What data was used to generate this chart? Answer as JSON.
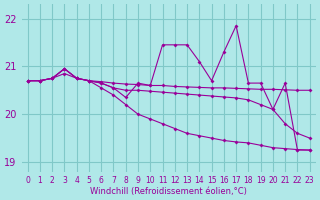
{
  "title": "",
  "xlabel": "Windchill (Refroidissement éolien,°C)",
  "ylabel": "",
  "background_color": "#b0e8e8",
  "line_color": "#990099",
  "grid_color": "#80c8c8",
  "x_ticks": [
    0,
    1,
    2,
    3,
    4,
    5,
    6,
    7,
    8,
    9,
    10,
    11,
    12,
    13,
    14,
    15,
    16,
    17,
    18,
    19,
    20,
    21,
    22,
    23
  ],
  "y_ticks": [
    19,
    20,
    21,
    22
  ],
  "ylim": [
    18.8,
    22.3
  ],
  "xlim": [
    -0.5,
    23.5
  ],
  "series": [
    [
      20.7,
      20.7,
      20.75,
      20.85,
      20.75,
      20.7,
      20.68,
      20.65,
      20.63,
      20.62,
      20.6,
      20.6,
      20.58,
      20.57,
      20.56,
      20.55,
      20.55,
      20.54,
      20.53,
      20.52,
      20.52,
      20.51,
      20.5,
      20.5
    ],
    [
      20.7,
      20.7,
      20.75,
      20.95,
      20.75,
      20.7,
      20.65,
      20.55,
      20.5,
      20.5,
      20.48,
      20.46,
      20.44,
      20.42,
      20.4,
      20.38,
      20.36,
      20.34,
      20.3,
      20.2,
      20.1,
      19.8,
      19.6,
      19.5
    ],
    [
      20.7,
      20.7,
      20.75,
      20.95,
      20.75,
      20.7,
      20.55,
      20.4,
      20.2,
      20.0,
      19.9,
      19.8,
      19.7,
      19.6,
      19.55,
      19.5,
      19.45,
      19.42,
      19.4,
      19.35,
      19.3,
      19.28,
      19.26,
      19.25
    ],
    [
      20.7,
      20.7,
      20.75,
      20.95,
      20.75,
      20.7,
      20.65,
      20.55,
      20.35,
      20.65,
      20.6,
      21.45,
      21.45,
      21.45,
      21.1,
      20.7,
      21.3,
      21.85,
      20.65,
      20.65,
      20.1,
      20.65,
      19.25,
      19.25
    ]
  ]
}
